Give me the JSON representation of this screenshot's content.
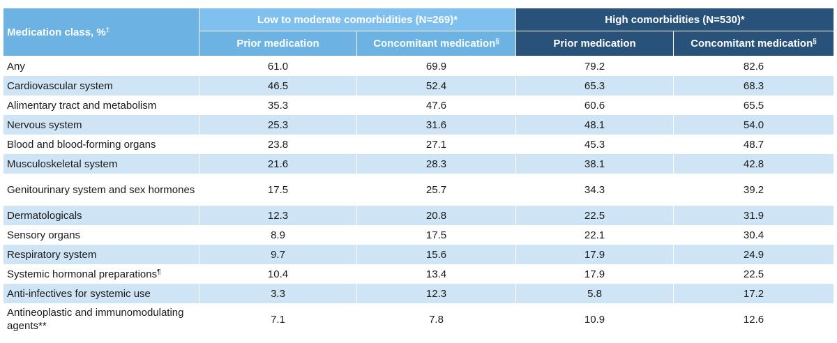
{
  "table": {
    "header": {
      "medication_class": "Medication class, %",
      "medication_class_sup": "‡",
      "low_group": "Low to moderate comorbidities (N=269)*",
      "high_group": "High comorbidities (N=530)*",
      "prior": "Prior medication",
      "concomitant": "Concomitant medication",
      "concomitant_sup": "§"
    },
    "rows": [
      {
        "label": "Any",
        "sup": "",
        "low_prior": "61.0",
        "low_conc": "69.9",
        "high_prior": "79.2",
        "high_conc": "82.6"
      },
      {
        "label": "Cardiovascular system",
        "sup": "",
        "low_prior": "46.5",
        "low_conc": "52.4",
        "high_prior": "65.3",
        "high_conc": "68.3"
      },
      {
        "label": "Alimentary tract and metabolism",
        "sup": "",
        "low_prior": "35.3",
        "low_conc": "47.6",
        "high_prior": "60.6",
        "high_conc": "65.5"
      },
      {
        "label": "Nervous system",
        "sup": "",
        "low_prior": "25.3",
        "low_conc": "31.6",
        "high_prior": "48.1",
        "high_conc": "54.0"
      },
      {
        "label": "Blood and blood-forming organs",
        "sup": "",
        "low_prior": "23.8",
        "low_conc": "27.1",
        "high_prior": "45.3",
        "high_conc": "48.7"
      },
      {
        "label": "Musculoskeletal system",
        "sup": "",
        "low_prior": "21.6",
        "low_conc": "28.3",
        "high_prior": "38.1",
        "high_conc": "42.8"
      },
      {
        "label": "Genitourinary system and sex hormones",
        "sup": "",
        "low_prior": "17.5",
        "low_conc": "25.7",
        "high_prior": "34.3",
        "high_conc": "39.2"
      },
      {
        "label": "Dermatologicals",
        "sup": "",
        "low_prior": "12.3",
        "low_conc": "20.8",
        "high_prior": "22.5",
        "high_conc": "31.9"
      },
      {
        "label": "Sensory organs",
        "sup": "",
        "low_prior": "8.9",
        "low_conc": "17.5",
        "high_prior": "22.1",
        "high_conc": "30.4"
      },
      {
        "label": "Respiratory system",
        "sup": "",
        "low_prior": "9.7",
        "low_conc": "15.6",
        "high_prior": "17.9",
        "high_conc": "24.9"
      },
      {
        "label": "Systemic hormonal preparations",
        "sup": "¶",
        "low_prior": "10.4",
        "low_conc": "13.4",
        "high_prior": "17.9",
        "high_conc": "22.5"
      },
      {
        "label": "Anti-infectives for systemic use",
        "sup": "",
        "low_prior": "3.3",
        "low_conc": "12.3",
        "high_prior": "5.8",
        "high_conc": "17.2"
      },
      {
        "label": "Antineoplastic and immunomodulating agents**",
        "sup": "",
        "low_prior": "7.1",
        "low_conc": "7.8",
        "high_prior": "10.9",
        "high_conc": "12.6"
      }
    ]
  }
}
